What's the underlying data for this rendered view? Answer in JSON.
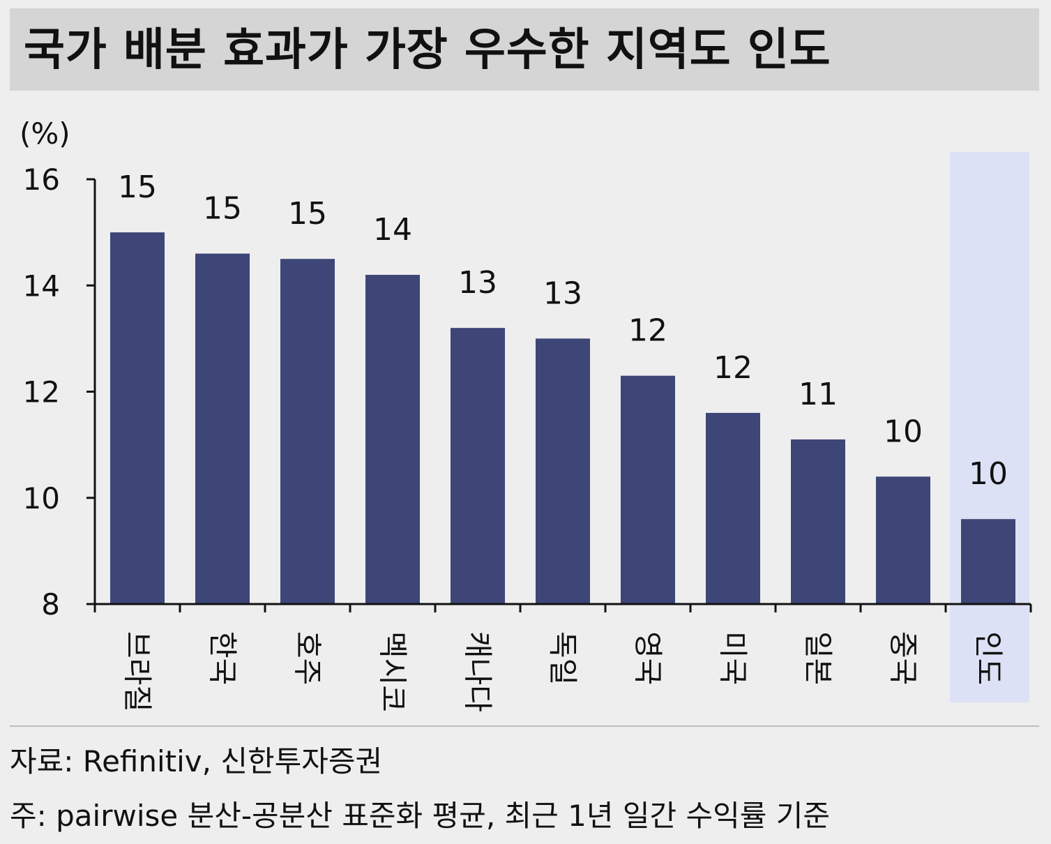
{
  "title": "국가 배분 효과가 가장 우수한 지역도 인도",
  "chart_data": {
    "type": "bar",
    "unit_label": "(%)",
    "categories": [
      "브라질",
      "한국",
      "호주",
      "멕시코",
      "캐나다",
      "독일",
      "영국",
      "미국",
      "일본",
      "중국",
      "인도"
    ],
    "values": [
      15.0,
      14.6,
      14.5,
      14.2,
      13.2,
      13.0,
      12.3,
      11.6,
      11.1,
      10.4,
      9.6
    ],
    "data_labels": [
      "15",
      "15",
      "15",
      "14",
      "13",
      "13",
      "12",
      "12",
      "11",
      "10",
      "10"
    ],
    "ylim": [
      8,
      16
    ],
    "yticks": [
      "8",
      "10",
      "12",
      "14",
      "16"
    ],
    "highlight_category": "인도",
    "grid": false,
    "colors": {
      "bar": "#3d4677",
      "highlight_bg": "#dde1f5",
      "axis": "#111111"
    }
  },
  "footer": {
    "source": "자료: Refinitiv, 신한투자증권",
    "note": "주: pairwise 분산-공분산 표준화 평균, 최근 1년 일간 수익률 기준"
  }
}
